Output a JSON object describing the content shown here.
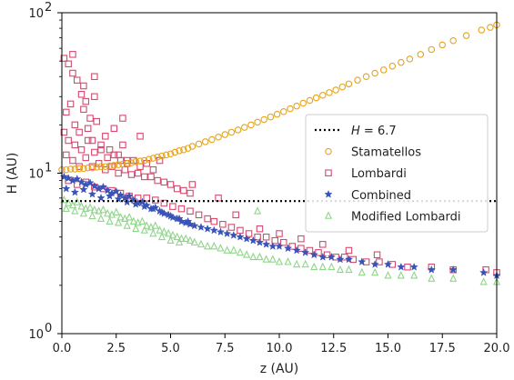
{
  "chart_data": {
    "type": "scatter",
    "xlabel": "z (AU)",
    "ylabel": "H (AU)",
    "xlim": [
      0,
      20
    ],
    "ylim": [
      1,
      100
    ],
    "yscale": "log",
    "x_ticks": [
      "0.0",
      "2.5",
      "5.0",
      "7.5",
      "10.0",
      "12.5",
      "15.0",
      "17.5",
      "20.0"
    ],
    "y_tick_bases": [
      "10",
      "10",
      "10"
    ],
    "y_tick_exponents": [
      "0",
      "1",
      "2"
    ],
    "legend_position": "center-right",
    "hline": {
      "label_var": "H",
      "label_rest": " = 6.7",
      "y": 6.7,
      "style": "dotted",
      "color": "#000000"
    },
    "series": [
      {
        "name": "Stamatellos",
        "marker": "circle",
        "color": "#e7a41a",
        "x": [
          0.0,
          0.2,
          0.4,
          0.6,
          0.8,
          1.0,
          1.2,
          1.4,
          1.6,
          1.8,
          2.0,
          2.2,
          2.4,
          2.6,
          2.8,
          3.0,
          3.2,
          3.4,
          3.6,
          3.8,
          4.0,
          4.2,
          4.4,
          4.6,
          4.8,
          5.0,
          5.2,
          5.4,
          5.6,
          5.8,
          6.0,
          6.3,
          6.6,
          6.9,
          7.2,
          7.5,
          7.8,
          8.1,
          8.4,
          8.7,
          9.0,
          9.3,
          9.6,
          9.9,
          10.2,
          10.5,
          10.8,
          11.1,
          11.4,
          11.7,
          12.0,
          12.3,
          12.6,
          12.9,
          13.2,
          13.6,
          14.0,
          14.4,
          14.8,
          15.2,
          15.6,
          16.0,
          16.5,
          17.0,
          17.5,
          18.0,
          18.6,
          19.3,
          19.7,
          20.0
        ],
        "y": [
          10.5,
          10.5,
          10.6,
          10.6,
          10.7,
          10.7,
          10.8,
          10.8,
          10.9,
          11.0,
          11.0,
          11.1,
          11.2,
          11.3,
          11.4,
          11.5,
          11.6,
          11.8,
          11.9,
          12.0,
          12.2,
          12.4,
          12.6,
          12.8,
          13.0,
          13.2,
          13.5,
          13.8,
          14.0,
          14.3,
          14.7,
          15.2,
          15.7,
          16.2,
          16.8,
          17.4,
          18.0,
          18.6,
          19.3,
          20.0,
          20.8,
          21.6,
          22.4,
          23.3,
          24.2,
          25.2,
          26.2,
          27.3,
          28.4,
          29.5,
          30.6,
          31.8,
          33.0,
          34.5,
          36.0,
          38.0,
          40.0,
          42.0,
          44.0,
          46.5,
          49.0,
          51.5,
          55.0,
          59.0,
          63.0,
          67.0,
          72.0,
          78.0,
          81.0,
          84.0
        ]
      },
      {
        "name": "Lombardi",
        "marker": "square",
        "color": "#d6496e",
        "x": [
          0.1,
          0.3,
          0.5,
          0.5,
          0.7,
          0.9,
          1.0,
          1.1,
          1.3,
          1.5,
          0.2,
          0.4,
          0.6,
          0.8,
          1.0,
          1.2,
          1.4,
          1.6,
          1.8,
          2.0,
          2.2,
          2.4,
          2.6,
          2.8,
          3.0,
          0.1,
          0.3,
          0.6,
          0.9,
          1.2,
          1.5,
          1.8,
          2.1,
          2.4,
          2.7,
          3.0,
          3.3,
          3.6,
          3.9,
          4.2,
          0.2,
          0.5,
          0.8,
          1.1,
          1.4,
          1.7,
          2.0,
          2.3,
          2.6,
          2.9,
          3.2,
          3.5,
          3.8,
          4.1,
          4.4,
          4.7,
          5.0,
          5.3,
          5.6,
          5.9,
          0.3,
          0.7,
          1.1,
          1.5,
          1.9,
          2.3,
          2.7,
          3.1,
          3.5,
          3.9,
          4.3,
          4.7,
          5.1,
          5.5,
          5.9,
          6.3,
          6.7,
          7.0,
          7.4,
          7.8,
          8.2,
          8.6,
          9.0,
          9.4,
          9.8,
          10.2,
          10.6,
          11.0,
          11.4,
          11.8,
          12.2,
          12.6,
          13.0,
          13.4,
          14.0,
          14.6,
          15.2,
          15.9,
          17.0,
          18.0,
          19.5,
          20.0,
          1.5,
          2.8,
          3.6,
          4.5,
          6.0,
          7.2,
          8.0,
          9.1,
          10.0,
          11.0,
          12.0,
          13.2,
          14.5
        ],
        "y": [
          52.0,
          48.0,
          55.0,
          42.0,
          38.0,
          31.0,
          35.0,
          28.0,
          22.0,
          40.0,
          24.0,
          27.0,
          20.0,
          18.0,
          25.0,
          19.0,
          16.0,
          21.0,
          15.0,
          17.0,
          14.0,
          19.0,
          13.0,
          15.0,
          12.0,
          18.0,
          16.0,
          15.0,
          14.0,
          16.0,
          13.5,
          14.0,
          12.5,
          13.0,
          12.0,
          11.5,
          12.0,
          11.0,
          11.5,
          10.5,
          13.0,
          12.0,
          11.0,
          12.5,
          11.0,
          11.5,
          10.5,
          11.0,
          10.0,
          10.5,
          9.8,
          10.0,
          9.5,
          9.5,
          9.0,
          8.8,
          8.5,
          8.0,
          7.8,
          7.5,
          9.0,
          8.5,
          8.8,
          8.2,
          8.0,
          7.8,
          7.5,
          7.2,
          7.0,
          7.0,
          6.8,
          6.5,
          6.2,
          6.0,
          5.8,
          5.5,
          5.2,
          5.0,
          4.8,
          4.6,
          4.4,
          4.2,
          4.0,
          4.0,
          3.8,
          3.7,
          3.5,
          3.4,
          3.3,
          3.2,
          3.1,
          3.0,
          3.0,
          2.9,
          2.8,
          2.8,
          2.7,
          2.6,
          2.6,
          2.5,
          2.5,
          2.4,
          30.0,
          22.0,
          17.0,
          12.0,
          8.5,
          7.0,
          5.5,
          4.5,
          4.2,
          3.9,
          3.6,
          3.3,
          3.1
        ]
      },
      {
        "name": "Combined",
        "marker": "star",
        "color": "#3a53b8",
        "x": [
          0.1,
          0.3,
          0.5,
          0.7,
          0.9,
          1.1,
          1.3,
          1.5,
          1.7,
          1.9,
          2.1,
          2.3,
          2.5,
          2.7,
          2.9,
          3.1,
          3.3,
          3.5,
          3.7,
          3.9,
          4.1,
          4.3,
          4.5,
          4.7,
          4.9,
          5.1,
          5.3,
          5.5,
          5.7,
          5.9,
          6.1,
          6.4,
          6.7,
          7.0,
          7.3,
          7.6,
          7.9,
          8.2,
          8.5,
          8.8,
          9.1,
          9.4,
          9.7,
          10.0,
          10.4,
          10.8,
          11.2,
          11.6,
          12.0,
          12.4,
          12.8,
          13.2,
          13.8,
          14.4,
          15.0,
          15.6,
          16.2,
          17.0,
          18.0,
          19.4,
          20.0,
          0.2,
          0.6,
          1.0,
          1.4,
          1.8,
          2.2,
          2.6,
          3.0,
          3.4,
          3.8,
          4.2,
          4.6,
          5.0,
          5.4,
          5.8
        ],
        "y": [
          9.5,
          9.3,
          9.0,
          9.2,
          8.8,
          8.5,
          8.7,
          8.3,
          8.0,
          8.2,
          7.8,
          7.5,
          7.7,
          7.3,
          7.0,
          7.2,
          6.8,
          6.5,
          6.6,
          6.3,
          6.0,
          6.1,
          5.8,
          5.6,
          5.5,
          5.3,
          5.2,
          5.0,
          4.9,
          4.8,
          4.7,
          4.6,
          4.5,
          4.4,
          4.3,
          4.2,
          4.1,
          4.0,
          3.9,
          3.8,
          3.7,
          3.6,
          3.5,
          3.5,
          3.4,
          3.3,
          3.2,
          3.1,
          3.0,
          3.0,
          2.9,
          2.9,
          2.8,
          2.7,
          2.7,
          2.6,
          2.6,
          2.5,
          2.5,
          2.4,
          2.3,
          8.0,
          7.6,
          7.9,
          7.4,
          7.0,
          7.2,
          6.9,
          6.6,
          6.4,
          6.2,
          6.0,
          5.7,
          5.4,
          5.2,
          5.0
        ]
      },
      {
        "name": "Modified Lombardi",
        "marker": "triangle",
        "color": "#8fd68a",
        "x": [
          0.1,
          0.3,
          0.5,
          0.7,
          0.9,
          1.1,
          1.3,
          1.5,
          1.7,
          1.9,
          2.1,
          2.3,
          2.5,
          2.7,
          2.9,
          3.1,
          3.3,
          3.5,
          3.7,
          3.9,
          4.1,
          4.3,
          4.5,
          4.7,
          4.9,
          5.1,
          5.3,
          5.5,
          5.7,
          5.9,
          6.1,
          6.4,
          6.7,
          7.0,
          7.3,
          7.6,
          7.9,
          8.2,
          8.5,
          8.8,
          9.1,
          9.4,
          9.7,
          10.0,
          10.4,
          10.8,
          11.2,
          11.6,
          12.0,
          12.4,
          12.8,
          13.2,
          13.8,
          14.4,
          15.0,
          15.6,
          16.2,
          17.0,
          18.0,
          19.4,
          20.0,
          0.2,
          0.6,
          1.0,
          1.4,
          1.8,
          2.2,
          2.6,
          3.0,
          3.4,
          3.8,
          4.2,
          4.6,
          5.0,
          5.4,
          9.0
        ],
        "y": [
          6.8,
          6.5,
          6.3,
          6.6,
          6.2,
          6.0,
          6.1,
          5.9,
          5.8,
          5.9,
          5.6,
          5.5,
          5.7,
          5.3,
          5.2,
          5.3,
          5.0,
          4.9,
          5.0,
          4.7,
          4.6,
          4.7,
          4.4,
          4.3,
          4.2,
          4.1,
          4.0,
          3.9,
          3.9,
          3.8,
          3.7,
          3.6,
          3.5,
          3.5,
          3.4,
          3.3,
          3.3,
          3.2,
          3.1,
          3.0,
          3.0,
          2.9,
          2.9,
          2.8,
          2.8,
          2.7,
          2.7,
          2.6,
          2.6,
          2.6,
          2.5,
          2.5,
          2.4,
          2.4,
          2.3,
          2.3,
          2.3,
          2.2,
          2.2,
          2.1,
          2.1,
          6.0,
          5.8,
          5.6,
          5.4,
          5.2,
          5.0,
          4.9,
          4.7,
          4.5,
          4.4,
          4.2,
          4.0,
          3.8,
          3.7,
          5.8
        ]
      }
    ]
  }
}
